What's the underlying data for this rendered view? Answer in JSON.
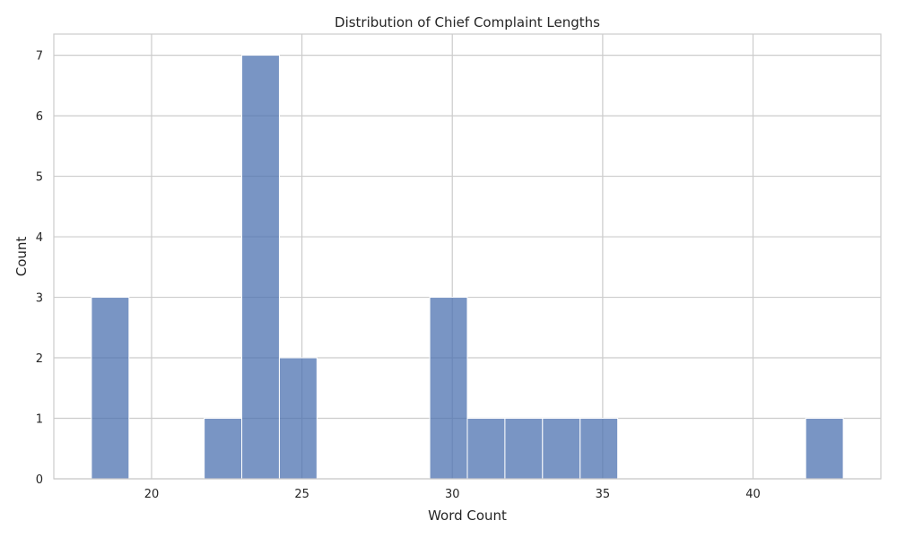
{
  "chart_data": {
    "type": "bar",
    "title": "Distribution of Chief Complaint Lengths",
    "xlabel": "Word Count",
    "ylabel": "Count",
    "xlim": [
      16.75,
      44.25
    ],
    "ylim": [
      0,
      7.35
    ],
    "xticks": [
      20,
      25,
      30,
      35,
      40
    ],
    "yticks": [
      0,
      1,
      2,
      3,
      4,
      5,
      6,
      7
    ],
    "grid": true,
    "bins": [
      {
        "start": 18.0,
        "end": 19.25,
        "count": 3
      },
      {
        "start": 19.25,
        "end": 20.5,
        "count": 0
      },
      {
        "start": 20.5,
        "end": 21.75,
        "count": 0
      },
      {
        "start": 21.75,
        "end": 23.0,
        "count": 1
      },
      {
        "start": 23.0,
        "end": 24.25,
        "count": 7
      },
      {
        "start": 24.25,
        "end": 25.5,
        "count": 2
      },
      {
        "start": 25.5,
        "end": 26.75,
        "count": 0
      },
      {
        "start": 26.75,
        "end": 28.0,
        "count": 0
      },
      {
        "start": 28.0,
        "end": 29.25,
        "count": 0
      },
      {
        "start": 29.25,
        "end": 30.5,
        "count": 3
      },
      {
        "start": 30.5,
        "end": 31.75,
        "count": 1
      },
      {
        "start": 31.75,
        "end": 33.0,
        "count": 1
      },
      {
        "start": 33.0,
        "end": 34.25,
        "count": 1
      },
      {
        "start": 34.25,
        "end": 35.5,
        "count": 1
      },
      {
        "start": 35.5,
        "end": 36.75,
        "count": 0
      },
      {
        "start": 36.75,
        "end": 38.0,
        "count": 0
      },
      {
        "start": 38.0,
        "end": 39.25,
        "count": 0
      },
      {
        "start": 39.25,
        "end": 40.5,
        "count": 0
      },
      {
        "start": 40.5,
        "end": 41.75,
        "count": 0
      },
      {
        "start": 41.75,
        "end": 43.0,
        "count": 1
      }
    ],
    "colors": {
      "bar": "#4c72b0",
      "bar_edge": "#ffffff",
      "grid": "#cccccc",
      "axes_edge": "#cccccc",
      "text": "#262626"
    }
  }
}
